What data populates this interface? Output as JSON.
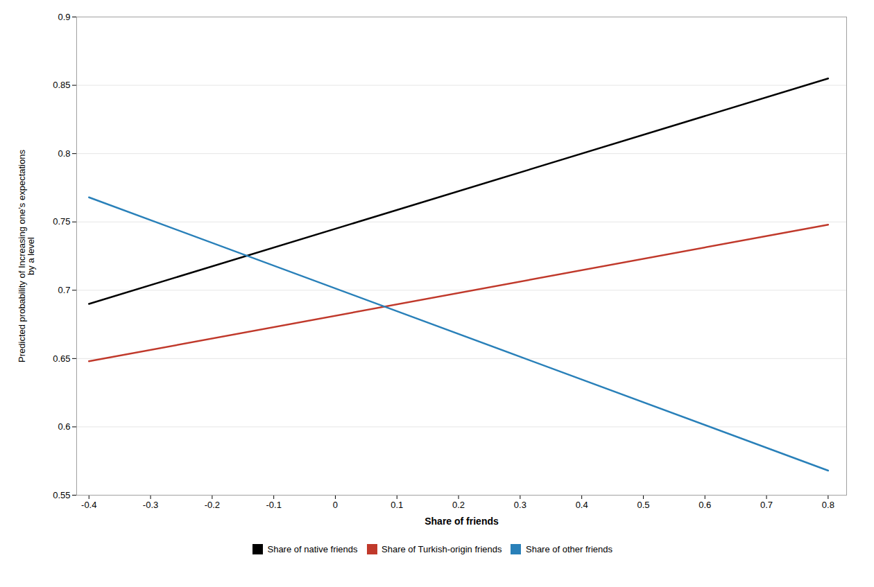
{
  "chart_data": {
    "type": "line",
    "xlabel": "Share of friends",
    "ylabel": "Predicted probability of Increasing one’s expectations\nby a level",
    "series": [
      {
        "name": "Share of native friends",
        "color": "#000000",
        "x": [
          -0.4,
          0.8
        ],
        "values": [
          0.69,
          0.855
        ]
      },
      {
        "name": "Share of Turkish-origin friends",
        "color": "#c0392b",
        "x": [
          -0.4,
          0.8
        ],
        "values": [
          0.648,
          0.748
        ]
      },
      {
        "name": "Share of other friends",
        "color": "#2980b9",
        "x": [
          -0.4,
          0.8
        ],
        "values": [
          0.768,
          0.568
        ]
      }
    ],
    "xlim": [
      -0.42,
      0.83
    ],
    "xticks": [
      -0.4,
      -0.3,
      -0.2,
      -0.1,
      0,
      0.1,
      0.2,
      0.3,
      0.4,
      0.5,
      0.6,
      0.7,
      0.8
    ],
    "ylim": [
      0.55,
      0.9
    ],
    "yticks": [
      0.55,
      0.6,
      0.65,
      0.7,
      0.75,
      0.8,
      0.85,
      0.9
    ],
    "grid": "y",
    "legend": "bottom"
  }
}
